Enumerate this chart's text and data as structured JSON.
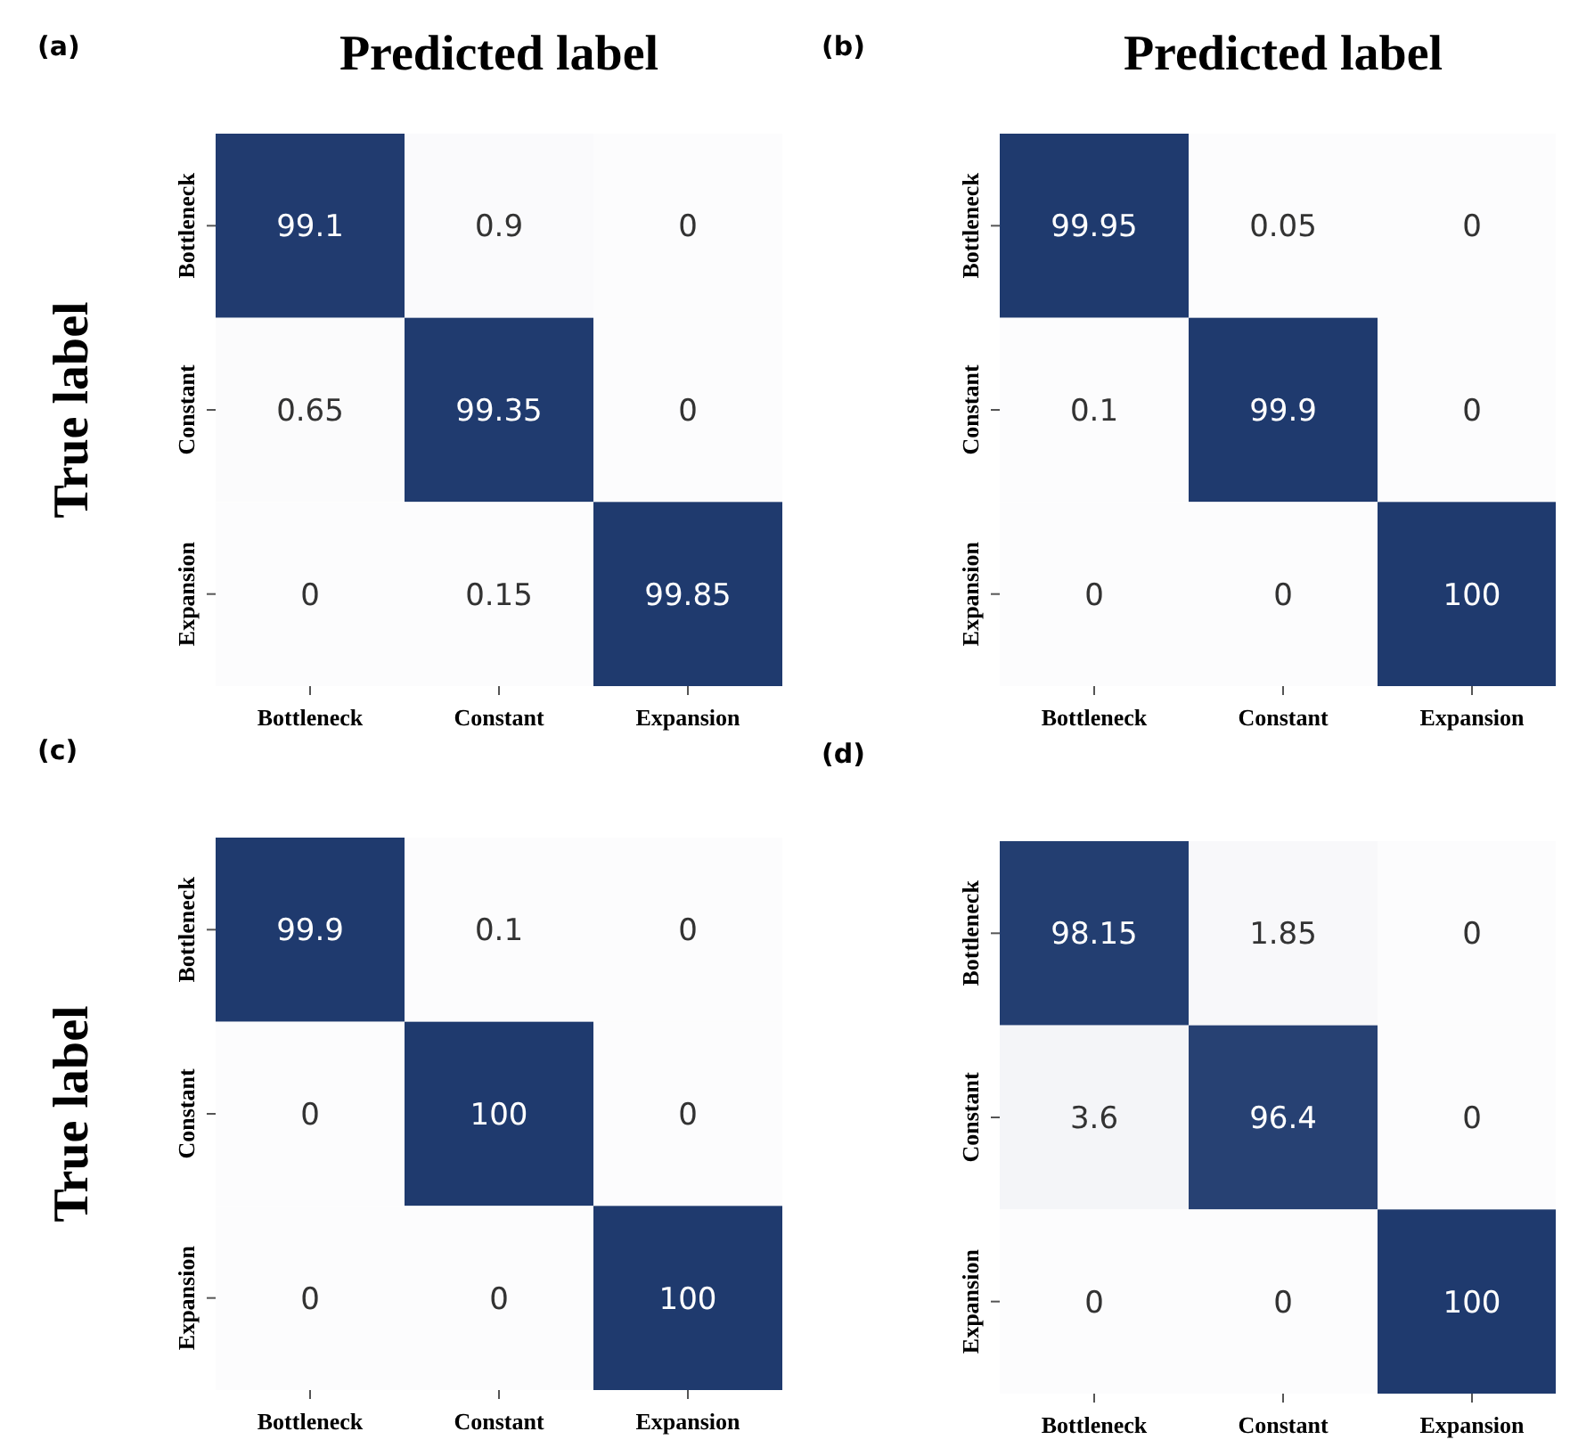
{
  "chart_data": [
    {
      "type": "heatmap",
      "title": "(a)",
      "xlabel": "Predicted label",
      "ylabel": "True label",
      "categories": [
        "Bottleneck",
        "Constant",
        "Expansion"
      ],
      "y_categories": [
        "Bottleneck",
        "Constant",
        "Expansion"
      ],
      "cells": [
        [
          99.1,
          0.9,
          0
        ],
        [
          0.65,
          99.35,
          0
        ],
        [
          0,
          0.15,
          99.85
        ]
      ],
      "data_labels": true
    },
    {
      "type": "heatmap",
      "title": "(b)",
      "xlabel": "Predicted label",
      "categories": [
        "Bottleneck",
        "Constant",
        "Expansion"
      ],
      "y_categories": [
        "Bottleneck",
        "Constant",
        "Expansion"
      ],
      "cells": [
        [
          99.95,
          0.05,
          0
        ],
        [
          0.1,
          99.9,
          0
        ],
        [
          0,
          0,
          100
        ]
      ],
      "data_labels": true
    },
    {
      "type": "heatmap",
      "title": "(c)",
      "ylabel": "True label",
      "categories": [
        "Bottleneck",
        "Constant",
        "Expansion"
      ],
      "y_categories": [
        "Bottleneck",
        "Constant",
        "Expansion"
      ],
      "cells": [
        [
          99.9,
          0.1,
          0
        ],
        [
          0,
          100,
          0
        ],
        [
          0,
          0,
          100
        ]
      ],
      "data_labels": true
    },
    {
      "type": "heatmap",
      "title": "(d)",
      "categories": [
        "Bottleneck",
        "Constant",
        "Expansion"
      ],
      "y_categories": [
        "Bottleneck",
        "Constant",
        "Expansion"
      ],
      "cells": [
        [
          98.15,
          1.85,
          0
        ],
        [
          3.6,
          96.4,
          0
        ],
        [
          0,
          0,
          100
        ]
      ],
      "data_labels": true
    }
  ]
}
